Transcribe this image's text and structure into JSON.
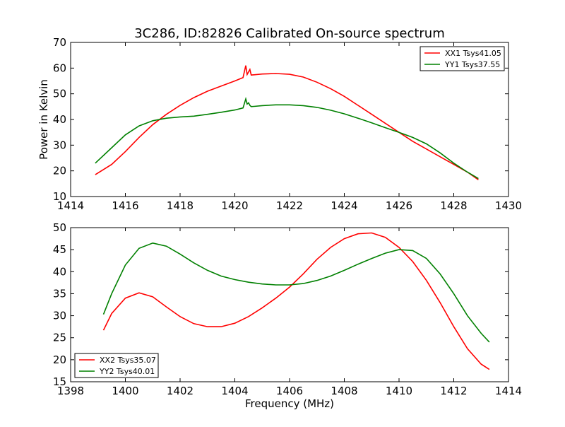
{
  "title": "3C286, ID:82826 Calibrated On-source spectrum",
  "chart_data": [
    {
      "type": "line",
      "title": "3C286, ID:82826 Calibrated On-source spectrum",
      "xlabel": "",
      "ylabel": "Power in Kelvin",
      "xlim": [
        1414,
        1430
      ],
      "ylim": [
        10,
        70
      ],
      "xticks": [
        1414,
        1416,
        1418,
        1420,
        1422,
        1424,
        1426,
        1428,
        1430
      ],
      "yticks": [
        10,
        20,
        30,
        40,
        50,
        60,
        70
      ],
      "legend_position": "top-right",
      "grid": false,
      "series": [
        {
          "name": "XX1 Tsys41.05",
          "color": "#ff0000",
          "x": [
            1414.9,
            1415.5,
            1416.0,
            1416.5,
            1417.0,
            1417.5,
            1418.0,
            1418.5,
            1419.0,
            1419.5,
            1420.0,
            1420.3,
            1420.4,
            1420.45,
            1420.5,
            1420.55,
            1420.6,
            1420.7,
            1421.0,
            1421.5,
            1422.0,
            1422.5,
            1423.0,
            1423.5,
            1424.0,
            1424.5,
            1425.0,
            1425.5,
            1426.0,
            1426.5,
            1427.0,
            1427.5,
            1428.0,
            1428.5,
            1428.9
          ],
          "y": [
            18.5,
            22.5,
            27.5,
            33.0,
            38.0,
            42.0,
            45.5,
            48.5,
            51.0,
            53.0,
            55.0,
            56.3,
            61.0,
            57.5,
            58.5,
            59.5,
            57.3,
            57.4,
            57.7,
            57.9,
            57.6,
            56.5,
            54.5,
            52.0,
            49.0,
            45.5,
            42.0,
            38.5,
            35.0,
            31.5,
            28.5,
            25.5,
            22.5,
            19.5,
            16.5
          ]
        },
        {
          "name": "YY1 Tsys37.55",
          "color": "#008000",
          "x": [
            1414.9,
            1415.5,
            1416.0,
            1416.5,
            1417.0,
            1417.5,
            1418.0,
            1418.5,
            1419.0,
            1419.5,
            1420.0,
            1420.3,
            1420.4,
            1420.45,
            1420.5,
            1420.55,
            1420.6,
            1420.7,
            1421.0,
            1421.5,
            1422.0,
            1422.5,
            1423.0,
            1423.5,
            1424.0,
            1424.5,
            1425.0,
            1425.5,
            1426.0,
            1426.5,
            1427.0,
            1427.5,
            1428.0,
            1428.5,
            1428.9
          ],
          "y": [
            23.0,
            29.0,
            34.0,
            37.5,
            39.5,
            40.5,
            41.0,
            41.3,
            42.0,
            42.8,
            43.7,
            44.5,
            48.0,
            46.0,
            46.5,
            45.5,
            45.0,
            45.1,
            45.4,
            45.7,
            45.7,
            45.4,
            44.7,
            43.6,
            42.2,
            40.5,
            38.7,
            36.8,
            35.0,
            33.0,
            30.5,
            27.0,
            23.0,
            19.5,
            17.0
          ]
        }
      ]
    },
    {
      "type": "line",
      "title": "",
      "xlabel": "Frequency (MHz)",
      "ylabel": "",
      "xlim": [
        1398,
        1414
      ],
      "ylim": [
        15,
        50
      ],
      "xticks": [
        1398,
        1400,
        1402,
        1404,
        1406,
        1408,
        1410,
        1412,
        1414
      ],
      "yticks": [
        15,
        20,
        25,
        30,
        35,
        40,
        45,
        50
      ],
      "legend_position": "bottom-left",
      "grid": false,
      "series": [
        {
          "name": "XX2 Tsys35.07",
          "color": "#ff0000",
          "x": [
            1399.2,
            1399.5,
            1400.0,
            1400.5,
            1401.0,
            1401.5,
            1402.0,
            1402.5,
            1403.0,
            1403.5,
            1404.0,
            1404.5,
            1405.0,
            1405.5,
            1406.0,
            1406.5,
            1407.0,
            1407.5,
            1408.0,
            1408.5,
            1409.0,
            1409.5,
            1410.0,
            1410.5,
            1411.0,
            1411.5,
            1412.0,
            1412.5,
            1413.0,
            1413.3
          ],
          "y": [
            26.7,
            30.5,
            34.0,
            35.2,
            34.3,
            32.0,
            29.8,
            28.2,
            27.5,
            27.5,
            28.3,
            29.8,
            31.8,
            34.0,
            36.5,
            39.5,
            42.8,
            45.5,
            47.5,
            48.6,
            48.8,
            47.8,
            45.5,
            42.3,
            38.0,
            33.0,
            27.5,
            22.5,
            19.0,
            17.8
          ]
        },
        {
          "name": "YY2 Tsys40.01",
          "color": "#008000",
          "x": [
            1399.2,
            1399.5,
            1400.0,
            1400.5,
            1401.0,
            1401.5,
            1402.0,
            1402.5,
            1403.0,
            1403.5,
            1404.0,
            1404.5,
            1405.0,
            1405.5,
            1406.0,
            1406.5,
            1407.0,
            1407.5,
            1408.0,
            1408.5,
            1409.0,
            1409.5,
            1410.0,
            1410.5,
            1411.0,
            1411.5,
            1412.0,
            1412.5,
            1413.0,
            1413.3
          ],
          "y": [
            30.3,
            35.0,
            41.5,
            45.3,
            46.5,
            45.8,
            44.0,
            42.0,
            40.3,
            39.0,
            38.2,
            37.6,
            37.2,
            37.0,
            37.0,
            37.3,
            38.0,
            39.0,
            40.3,
            41.7,
            43.0,
            44.2,
            45.0,
            44.8,
            43.0,
            39.5,
            35.0,
            30.0,
            26.0,
            24.0
          ]
        }
      ]
    }
  ]
}
